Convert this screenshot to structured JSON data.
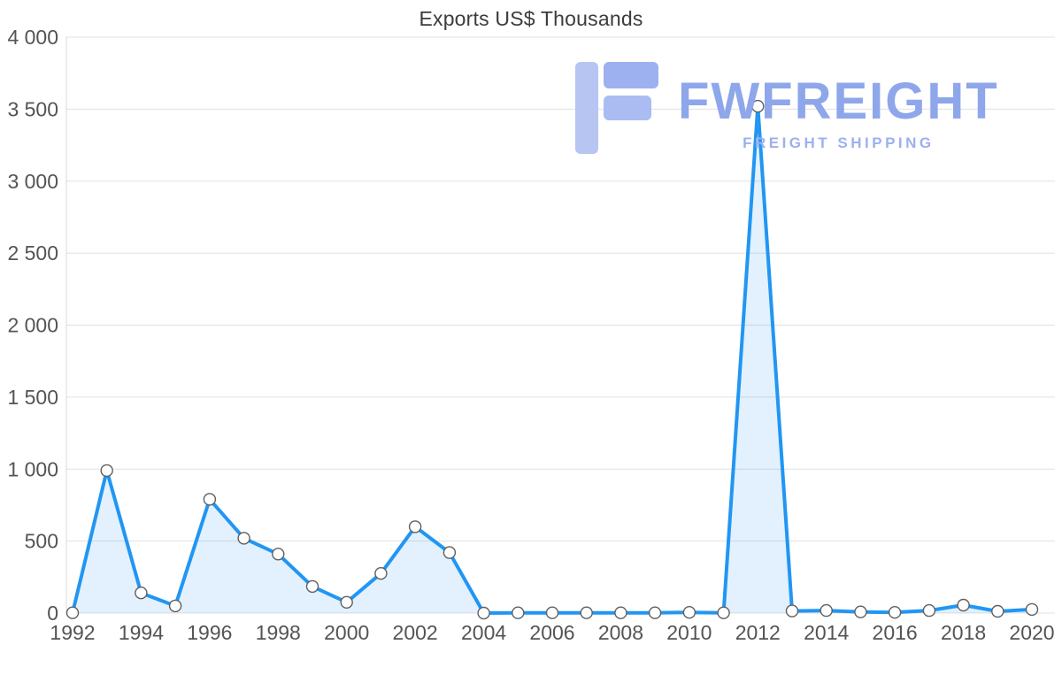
{
  "title": "Exports US$ Thousands",
  "watermark": {
    "brand": "FWFREIGHT",
    "tagline": "FREIGHT SHIPPING"
  },
  "chart_data": {
    "type": "area",
    "title": "Exports US$ Thousands",
    "xlabel": "",
    "ylabel": "",
    "x": [
      1992,
      1993,
      1994,
      1995,
      1996,
      1997,
      1998,
      1999,
      2000,
      2001,
      2002,
      2003,
      2004,
      2005,
      2006,
      2007,
      2008,
      2009,
      2010,
      2011,
      2012,
      2013,
      2014,
      2015,
      2016,
      2017,
      2018,
      2019,
      2020
    ],
    "values": [
      2,
      990,
      140,
      50,
      790,
      520,
      410,
      185,
      75,
      275,
      600,
      420,
      0,
      2,
      2,
      2,
      2,
      2,
      5,
      2,
      3520,
      15,
      18,
      8,
      5,
      18,
      55,
      12,
      25
    ],
    "ylim": [
      0,
      4000
    ],
    "yticks": [
      {
        "value": 0,
        "label": "0"
      },
      {
        "value": 500,
        "label": "500"
      },
      {
        "value": 1000,
        "label": "1 000"
      },
      {
        "value": 1500,
        "label": "1 500"
      },
      {
        "value": 2000,
        "label": "2 000"
      },
      {
        "value": 2500,
        "label": "2 500"
      },
      {
        "value": 3000,
        "label": "3 000"
      },
      {
        "value": 3500,
        "label": "3 500"
      },
      {
        "value": 4000,
        "label": "4 000"
      }
    ],
    "xticks": [
      1992,
      1994,
      1996,
      1998,
      2000,
      2002,
      2004,
      2006,
      2008,
      2010,
      2012,
      2014,
      2016,
      2018,
      2020
    ],
    "grid": true,
    "legend": false,
    "colors": {
      "line": "#2196f3",
      "fill": "rgba(33,150,243,0.13)",
      "marker_fill": "#ffffff",
      "marker_stroke": "#5f5f5f",
      "grid": "#e0e0e0",
      "axis_line": "#d8d8d8",
      "axis_text": "#545454",
      "title": "#3c3c3c",
      "watermark": "#8ea6ea"
    }
  }
}
